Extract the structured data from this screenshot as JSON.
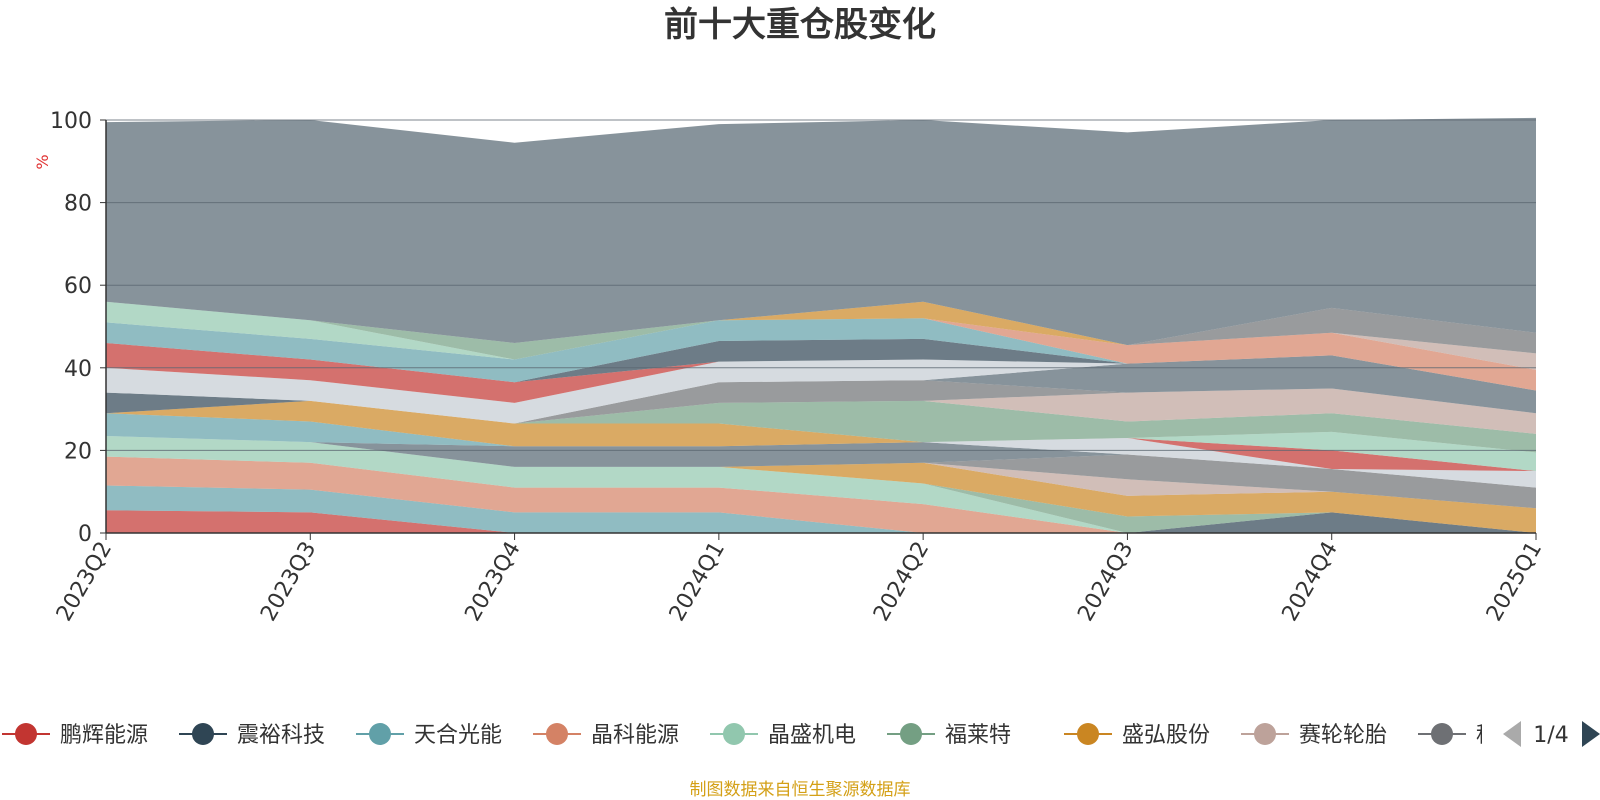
{
  "chart_data": {
    "type": "area",
    "stacked": true,
    "title": "前十大重仓股变化",
    "ylabel": "%",
    "ylim": [
      0,
      100
    ],
    "yticks": [
      0,
      20,
      40,
      60,
      80,
      100
    ],
    "x": [
      "2023Q2",
      "2023Q3",
      "2023Q4",
      "2024Q1",
      "2024Q2",
      "2024Q3",
      "2024Q4",
      "2025Q1"
    ],
    "grid": true,
    "legend_position": "bottom",
    "legend_page": "1/4",
    "series": [
      {
        "name": "鹏辉能源",
        "color": "#c23531",
        "values": [
          5.5,
          5.0,
          0,
          0,
          0,
          0,
          0,
          0
        ]
      },
      {
        "name": "震裕科技",
        "color": "#2f4554",
        "values": [
          0,
          0,
          0,
          0,
          0,
          0,
          5.0,
          0
        ]
      },
      {
        "name": "天合光能",
        "color": "#61a0a8",
        "values": [
          6.0,
          5.5,
          5.0,
          5.0,
          0,
          0,
          0,
          0
        ]
      },
      {
        "name": "晶科能源",
        "color": "#d48265",
        "values": [
          7.0,
          6.5,
          6.0,
          6.0,
          7.0,
          0,
          0,
          0
        ]
      },
      {
        "name": "晶盛机电",
        "color": "#91c7ae",
        "values": [
          5.0,
          5.0,
          5.0,
          5.0,
          5.0,
          0,
          0,
          0
        ]
      },
      {
        "name": "福莱特",
        "color": "#749f83",
        "values": [
          0,
          0,
          0,
          0,
          0,
          4.0,
          0,
          0
        ]
      },
      {
        "name": "盛弘股份",
        "color": "#ca8622",
        "values": [
          0,
          0,
          0,
          0,
          5.0,
          5.0,
          5.0,
          6.0
        ]
      },
      {
        "name": "赛轮轮胎",
        "color": "#bda29a",
        "values": [
          0,
          0,
          0,
          0,
          0,
          4.0,
          0,
          0
        ]
      },
      {
        "name": "科",
        "color": "#6e7074",
        "values": [
          0,
          0,
          0,
          0,
          0,
          6.0,
          5.5,
          5.0
        ]
      },
      {
        "name": "",
        "color": "#546570",
        "values": [
          0,
          0,
          5.0,
          5.0,
          5.0,
          0,
          0,
          0
        ]
      },
      {
        "name": "",
        "color": "#c4ccd3",
        "values": [
          0,
          0,
          0,
          0,
          0,
          4.0,
          0,
          4.0
        ]
      },
      {
        "name": "",
        "color": "#c23531",
        "values": [
          0,
          0,
          0,
          0,
          0,
          0,
          4.5,
          0
        ]
      },
      {
        "name": "",
        "color": "#91c7ae",
        "values": [
          0,
          0,
          0,
          0,
          0,
          0,
          4.5,
          4.5
        ]
      },
      {
        "name": "",
        "color": "#61a0a8",
        "values": [
          5.5,
          5.0,
          0,
          0,
          0,
          0,
          0,
          0
        ]
      },
      {
        "name": "",
        "color": "#ca8622",
        "values": [
          0,
          5.0,
          5.5,
          5.5,
          0,
          0,
          0,
          0
        ]
      },
      {
        "name": "",
        "color": "#749f83",
        "values": [
          0,
          0,
          0,
          5.0,
          10.0,
          4.0,
          4.5,
          4.5
        ]
      },
      {
        "name": "",
        "color": "#bda29a",
        "values": [
          0,
          0,
          0,
          0,
          0,
          7.0,
          6.0,
          5.0
        ]
      },
      {
        "name": "",
        "color": "#6e7074",
        "values": [
          0,
          0,
          0,
          5.0,
          5.0,
          0,
          0,
          0
        ]
      },
      {
        "name": "",
        "color": "#2f4554",
        "values": [
          5.0,
          0,
          0,
          0,
          0,
          0,
          0,
          0
        ]
      },
      {
        "name": "",
        "color": "#546570",
        "values": [
          0,
          0,
          0,
          0,
          0,
          7.0,
          8.0,
          5.5
        ]
      },
      {
        "name": "",
        "color": "#c4ccd3",
        "values": [
          6.0,
          5.0,
          5.0,
          5.0,
          5.0,
          0,
          0,
          0
        ]
      },
      {
        "name": "",
        "color": "#c23531",
        "values": [
          6.0,
          5.0,
          5.0,
          0,
          0,
          0,
          0,
          0
        ]
      },
      {
        "name": "",
        "color": "#2f4554",
        "values": [
          0,
          0,
          0,
          5.0,
          5.0,
          0,
          0,
          0
        ]
      },
      {
        "name": "",
        "color": "#61a0a8",
        "values": [
          5.0,
          5.0,
          5.5,
          5.0,
          5.0,
          0,
          0,
          0
        ]
      },
      {
        "name": "",
        "color": "#d48265",
        "values": [
          0,
          0,
          0,
          0,
          0,
          4.5,
          5.5,
          5.0
        ]
      },
      {
        "name": "",
        "color": "#91c7ae",
        "values": [
          5.0,
          4.5,
          0,
          0,
          0,
          0,
          0,
          0
        ]
      },
      {
        "name": "",
        "color": "#749f83",
        "values": [
          0,
          0,
          4.0,
          0,
          0,
          0,
          0,
          0
        ]
      },
      {
        "name": "",
        "color": "#ca8622",
        "values": [
          0,
          0,
          0,
          0,
          4.0,
          0,
          0,
          0
        ]
      },
      {
        "name": "",
        "color": "#bda29a",
        "values": [
          0,
          0,
          0,
          0,
          0,
          0,
          0,
          4.0
        ]
      },
      {
        "name": "",
        "color": "#6e7074",
        "values": [
          0,
          0,
          0,
          0,
          0,
          0,
          6.0,
          5.0
        ]
      },
      {
        "name": "",
        "color": "#546570",
        "values": [
          43.5,
          48.5,
          48.5,
          47.5,
          44.0,
          51.5,
          45.5,
          52.0
        ]
      }
    ]
  },
  "footer": {
    "source": "制图数据来自恒生聚源数据库"
  }
}
